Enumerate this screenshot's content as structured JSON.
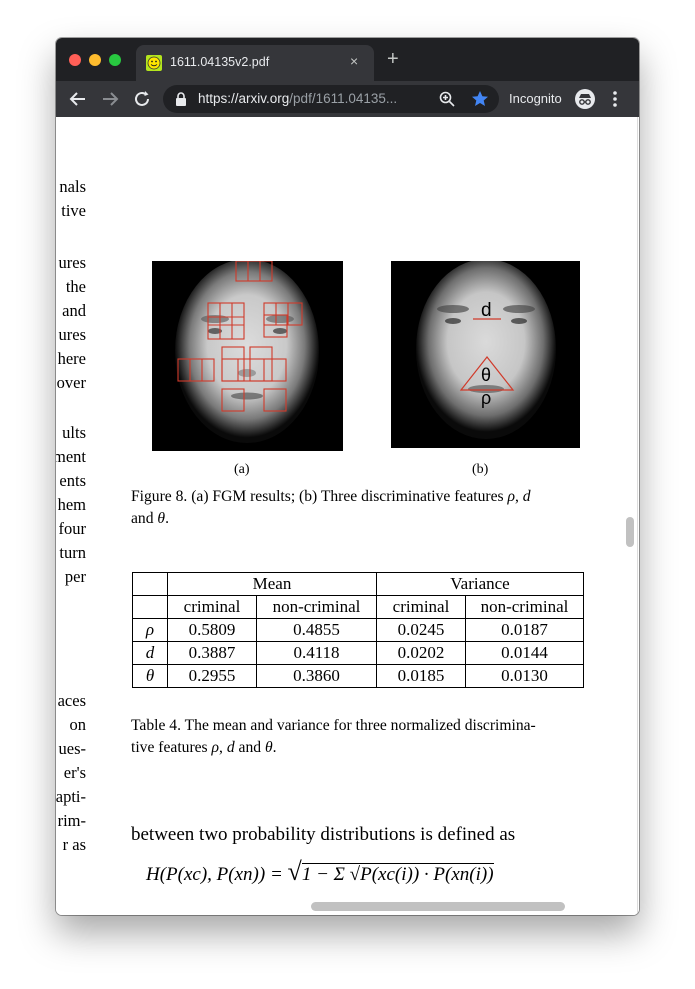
{
  "browser": {
    "tab_title": "1611.04135v2.pdf",
    "tab_close_label": "×",
    "new_tab_label": "+",
    "url_host": "https://arxiv.org",
    "url_path": "/pdf/1611.04135...",
    "incognito_label": "Incognito",
    "icons": [
      "favicon-icon",
      "close-icon",
      "plus-icon",
      "back-arrow-icon",
      "forward-arrow-icon",
      "reload-icon",
      "lock-icon",
      "zoom-icon",
      "star-icon",
      "incognito-icon",
      "menu-dots-icon"
    ],
    "colors": {
      "tabbar": "#202124",
      "toolbar": "#35363a",
      "star": "#4285f4"
    }
  },
  "document": {
    "left_fragments": [
      "nals",
      "tive",
      "ures",
      "the",
      "and",
      "ures",
      "here",
      "over",
      "ults",
      "ment",
      "ents",
      "hem",
      "four",
      "turn",
      "per",
      "aces",
      "on",
      "ues-",
      "er's",
      "apti-",
      "rim-",
      "r as"
    ],
    "figure8": {
      "sub_a": "(a)",
      "sub_b": "(b)",
      "label_d": "d",
      "label_theta": "θ",
      "label_rho": "ρ",
      "caption_prefix": "Figure 8. (a) FGM results; (b) Three discriminative features ",
      "caption_rho": "ρ",
      "caption_comma": ", ",
      "caption_d": "d",
      "caption_and": "and ",
      "caption_theta": "θ",
      "caption_end": "."
    },
    "table4": {
      "group_headers": [
        "Mean",
        "Variance"
      ],
      "sub_headers": [
        "criminal",
        "non-criminal",
        "criminal",
        "non-criminal"
      ],
      "rows": [
        {
          "feature": "ρ",
          "values": [
            "0.5809",
            "0.4855",
            "0.0245",
            "0.0187"
          ]
        },
        {
          "feature": "d",
          "values": [
            "0.3887",
            "0.4118",
            "0.0202",
            "0.0144"
          ]
        },
        {
          "feature": "θ",
          "values": [
            "0.2955",
            "0.3860",
            "0.0185",
            "0.0130"
          ]
        }
      ],
      "caption_line1": "Table 4. The mean and variance for three normalized discrimina-",
      "caption_line2_prefix": "tive features ",
      "caption_rho": "ρ",
      "caption_comma": ", ",
      "caption_d": "d",
      "caption_and": " and ",
      "caption_theta": "θ",
      "caption_end": "."
    },
    "body_text": "between two probability distributions is defined as",
    "formula": {
      "lhs": "H(P(xc), P(xn)) =",
      "inner": "1 − Σ √P(xc(i)) · P(xn(i))"
    }
  }
}
